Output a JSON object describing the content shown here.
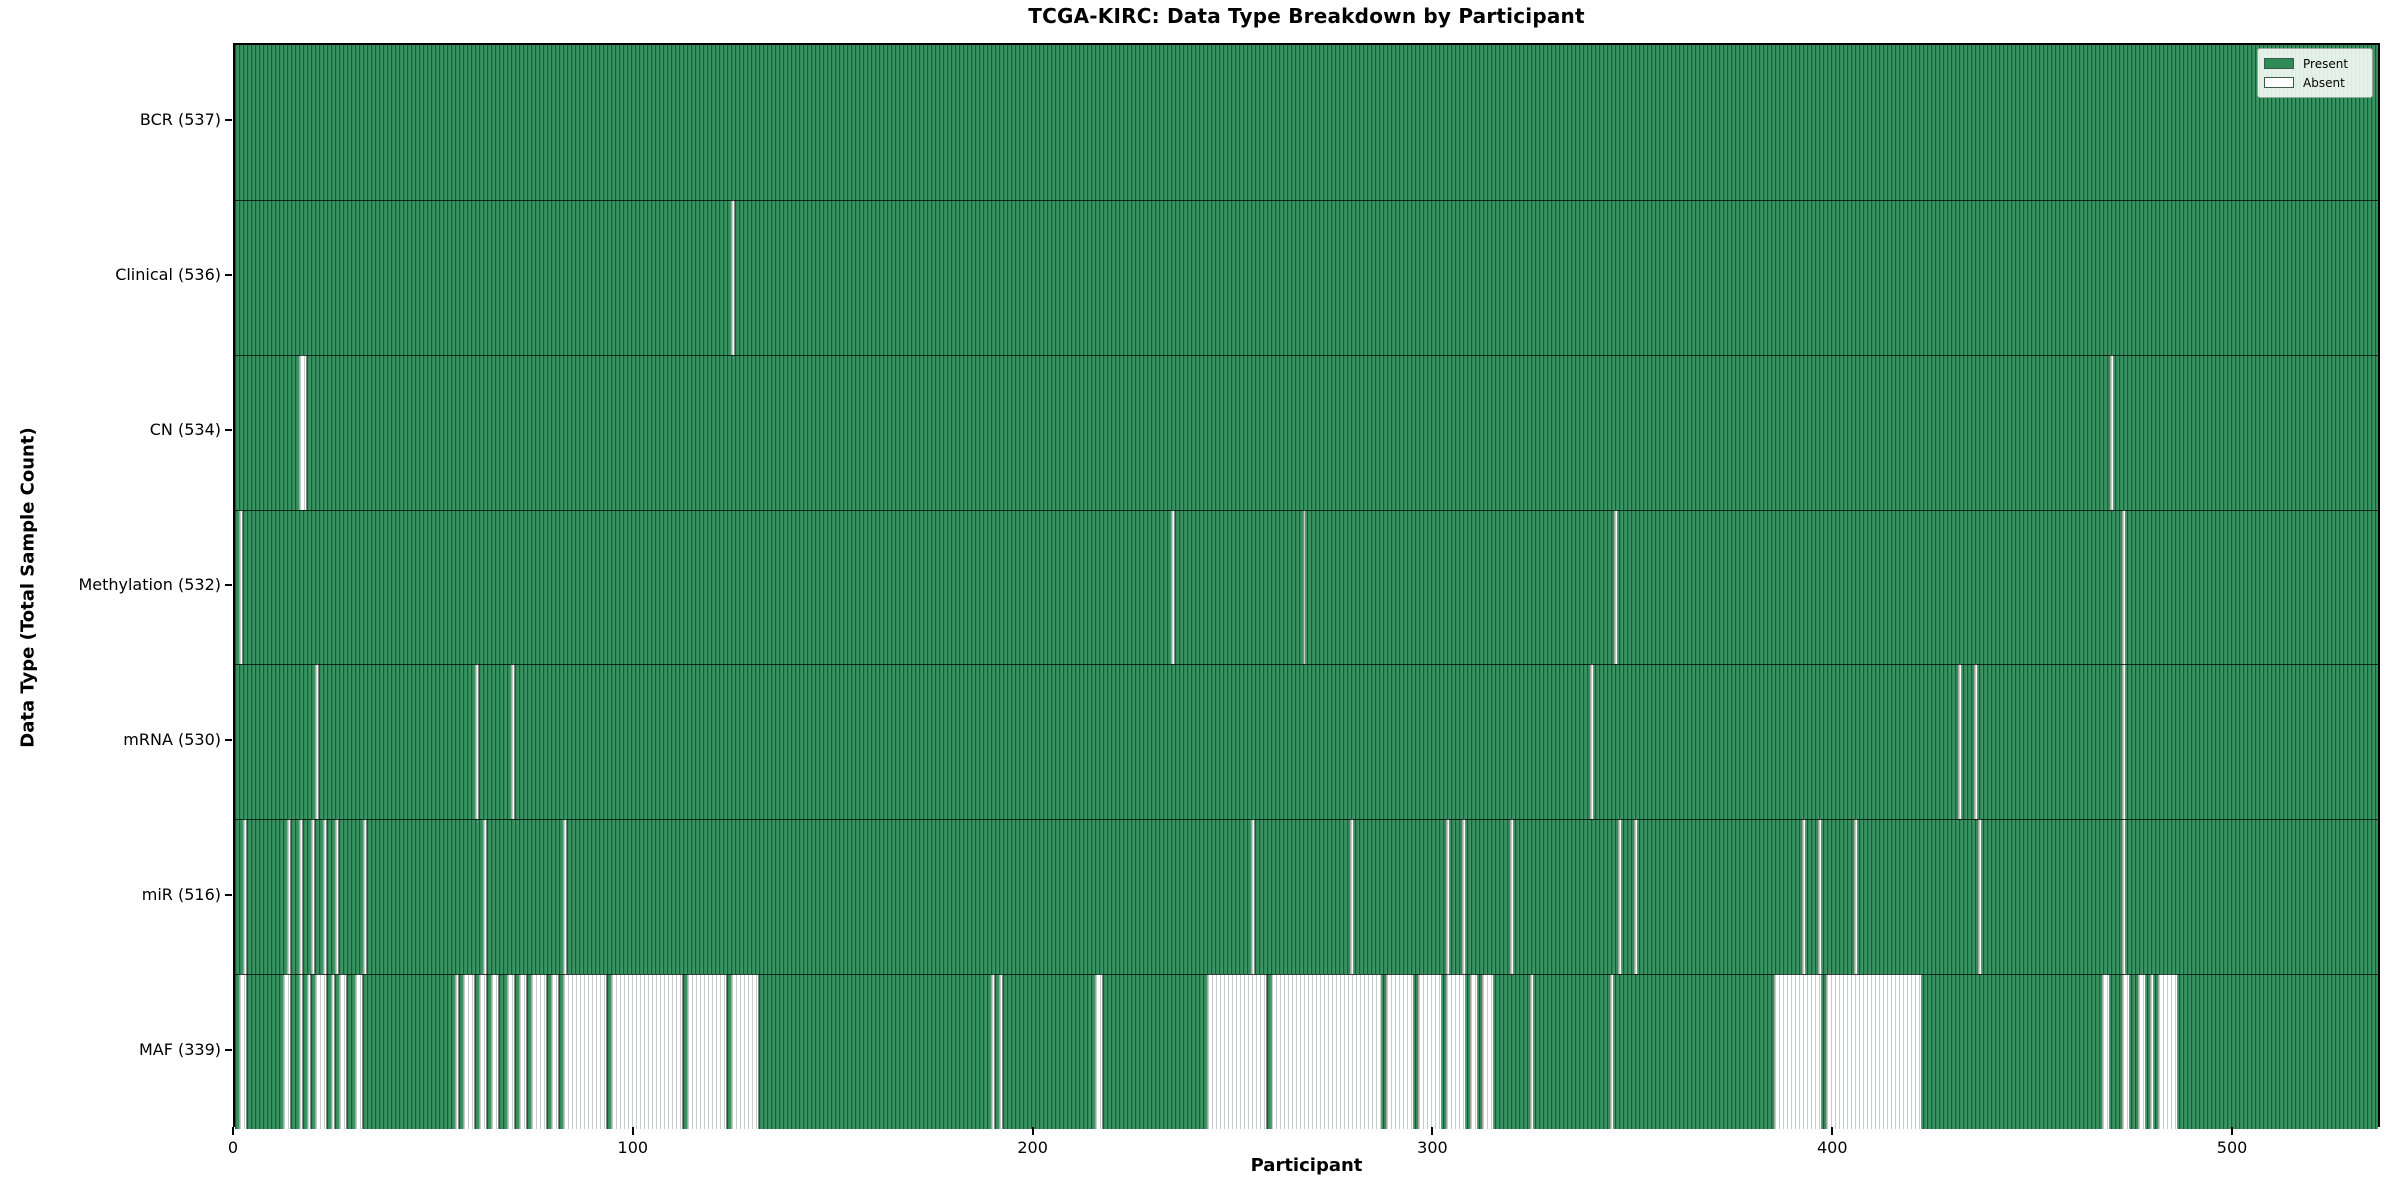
{
  "chart_data": {
    "type": "heatmap",
    "title": "TCGA-KIRC: Data Type Breakdown by Participant",
    "xlabel": "Participant",
    "ylabel": "Data Type (Total Sample Count)",
    "n_participants": 537,
    "x_ticks": [
      0,
      100,
      200,
      300,
      400,
      500
    ],
    "legend": [
      {
        "label": "Present",
        "color": "#2e8b57"
      },
      {
        "label": "Absent",
        "color": "#ffffff"
      }
    ],
    "colors": {
      "present": "#2e8b57",
      "absent": "#ffffff",
      "bar_edge": "#1d5738",
      "row_separator": "#000000"
    },
    "rows": [
      {
        "name": "BCR",
        "label": "BCR (537)",
        "total": 537,
        "absent_ranges": []
      },
      {
        "name": "Clinical",
        "label": "Clinical (536)",
        "total": 536,
        "absent_ranges": [
          [
            124,
            124
          ]
        ]
      },
      {
        "name": "CN",
        "label": "CN (534)",
        "total": 534,
        "absent_ranges": [
          [
            16,
            17
          ],
          [
            469,
            469
          ]
        ]
      },
      {
        "name": "Methylation",
        "label": "Methylation (532)",
        "total": 532,
        "absent_ranges": [
          [
            1,
            1
          ],
          [
            234,
            234
          ],
          [
            267,
            267
          ],
          [
            345,
            345
          ],
          [
            472,
            472
          ]
        ]
      },
      {
        "name": "mRNA",
        "label": "mRNA (530)",
        "total": 530,
        "absent_ranges": [
          [
            20,
            20
          ],
          [
            60,
            60
          ],
          [
            69,
            69
          ],
          [
            339,
            339
          ],
          [
            431,
            431
          ],
          [
            435,
            435
          ],
          [
            472,
            472
          ]
        ]
      },
      {
        "name": "miR",
        "label": "miR (516)",
        "total": 516,
        "absent_ranges": [
          [
            2,
            2
          ],
          [
            13,
            13
          ],
          [
            16,
            16
          ],
          [
            19,
            19
          ],
          [
            22,
            22
          ],
          [
            25,
            25
          ],
          [
            32,
            32
          ],
          [
            62,
            62
          ],
          [
            82,
            82
          ],
          [
            254,
            254
          ],
          [
            279,
            279
          ],
          [
            303,
            303
          ],
          [
            307,
            307
          ],
          [
            319,
            319
          ],
          [
            346,
            346
          ],
          [
            350,
            350
          ],
          [
            392,
            392
          ],
          [
            396,
            396
          ],
          [
            405,
            405
          ],
          [
            436,
            436
          ],
          [
            472,
            472
          ]
        ]
      },
      {
        "name": "MAF",
        "label": "MAF (339)",
        "total": 339,
        "absent_ranges": [
          [
            1,
            2
          ],
          [
            12,
            13
          ],
          [
            16,
            16
          ],
          [
            18,
            18
          ],
          [
            20,
            22
          ],
          [
            24,
            24
          ],
          [
            26,
            27
          ],
          [
            30,
            31
          ],
          [
            55,
            55
          ],
          [
            57,
            59
          ],
          [
            61,
            62
          ],
          [
            64,
            65
          ],
          [
            68,
            69
          ],
          [
            71,
            72
          ],
          [
            74,
            77
          ],
          [
            79,
            80
          ],
          [
            82,
            92
          ],
          [
            94,
            111
          ],
          [
            113,
            122
          ],
          [
            124,
            130
          ],
          [
            189,
            189
          ],
          [
            191,
            191
          ],
          [
            215,
            216
          ],
          [
            243,
            257
          ],
          [
            259,
            286
          ],
          [
            288,
            294
          ],
          [
            296,
            301
          ],
          [
            303,
            307
          ],
          [
            309,
            310
          ],
          [
            312,
            314
          ],
          [
            324,
            324
          ],
          [
            344,
            344
          ],
          [
            385,
            396
          ],
          [
            398,
            421
          ],
          [
            467,
            468
          ],
          [
            472,
            473
          ],
          [
            476,
            477
          ],
          [
            479,
            479
          ],
          [
            481,
            485
          ]
        ]
      }
    ]
  }
}
